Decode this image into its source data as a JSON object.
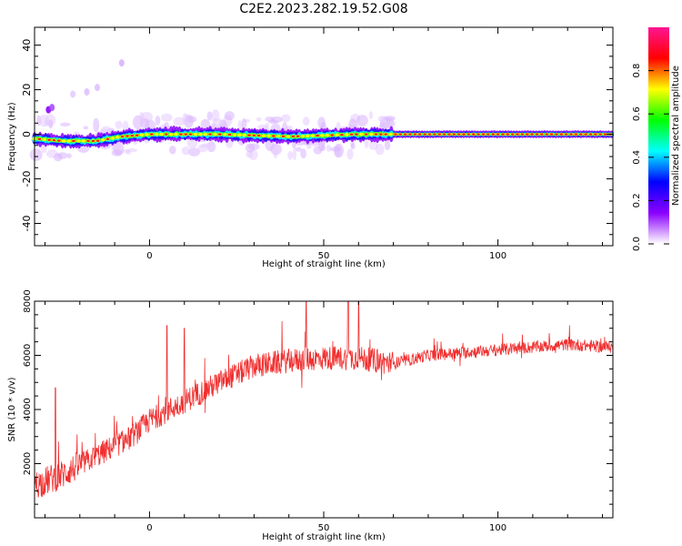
{
  "chart_data": [
    {
      "type": "heatmap",
      "title": "C2E2.2023.282.19.52.G08",
      "xlabel": "Height of straight line (km)",
      "ylabel": "Frequency (Hz)",
      "xlim": [
        -33,
        133
      ],
      "ylim": [
        -50,
        48
      ],
      "x_ticks": [
        "0",
        "50",
        "100"
      ],
      "y_ticks": [
        "-40",
        "-20",
        "0",
        "20",
        "40"
      ],
      "colorbar": {
        "label": "Normalized spectral amplitude",
        "ticks": [
          "0.0",
          "0.2",
          "0.4",
          "0.6",
          "0.8"
        ],
        "range": [
          0,
          1
        ],
        "colormap": [
          "#ffffff",
          "#8b00ff",
          "#0000ff",
          "#00ffff",
          "#00ff00",
          "#ffff00",
          "#ff0000",
          "#ff1493"
        ]
      },
      "ridge": [
        {
          "x": -33,
          "freq": -2
        },
        {
          "x": -25,
          "freq": -3
        },
        {
          "x": -15,
          "freq": -3
        },
        {
          "x": -8,
          "freq": -1
        },
        {
          "x": 0,
          "freq": 0
        },
        {
          "x": 20,
          "freq": 0
        },
        {
          "x": 40,
          "freq": -1
        },
        {
          "x": 60,
          "freq": 0
        },
        {
          "x": 80,
          "freq": 0
        },
        {
          "x": 133,
          "freq": 0
        }
      ],
      "grid": false
    },
    {
      "type": "line",
      "xlabel": "Height of straight line (km)",
      "ylabel": "SNR (10 * v/v)",
      "xlim": [
        -33,
        133
      ],
      "ylim": [
        0,
        8000
      ],
      "x_ticks": [
        "0",
        "50",
        "100"
      ],
      "y_ticks": [
        "2000",
        "4000",
        "6000",
        "8000"
      ],
      "color": "#f03030",
      "trend": [
        {
          "x": -33,
          "y": 1200
        },
        {
          "x": -25,
          "y": 1600
        },
        {
          "x": -15,
          "y": 2300
        },
        {
          "x": -5,
          "y": 3000
        },
        {
          "x": 0,
          "y": 3600
        },
        {
          "x": 10,
          "y": 4300
        },
        {
          "x": 20,
          "y": 5000
        },
        {
          "x": 30,
          "y": 5600
        },
        {
          "x": 40,
          "y": 5800
        },
        {
          "x": 50,
          "y": 5900
        },
        {
          "x": 60,
          "y": 5900
        },
        {
          "x": 70,
          "y": 5700
        },
        {
          "x": 80,
          "y": 6000
        },
        {
          "x": 90,
          "y": 6100
        },
        {
          "x": 100,
          "y": 6200
        },
        {
          "x": 110,
          "y": 6300
        },
        {
          "x": 120,
          "y": 6400
        },
        {
          "x": 133,
          "y": 6300
        }
      ],
      "spikes": [
        {
          "x": -27,
          "y": 4800
        },
        {
          "x": 5,
          "y": 7100
        },
        {
          "x": 10,
          "y": 7000
        },
        {
          "x": 45,
          "y": 8000
        },
        {
          "x": 57,
          "y": 8000
        },
        {
          "x": 60,
          "y": 8000
        }
      ],
      "grid": false
    }
  ]
}
